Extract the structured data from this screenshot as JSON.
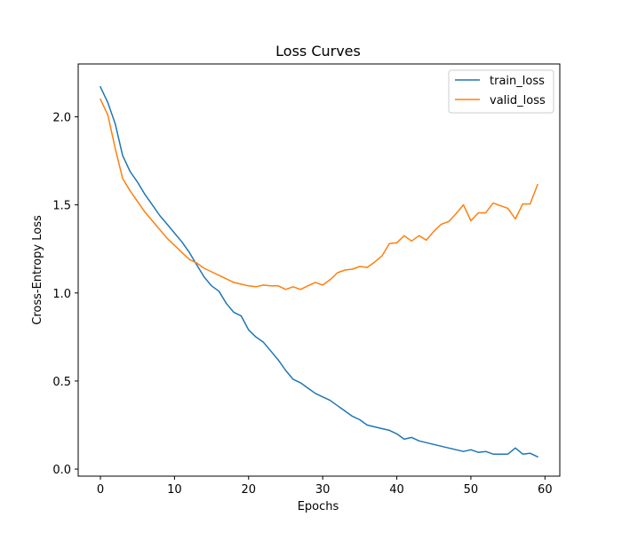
{
  "chart_data": {
    "type": "line",
    "title": "Loss Curves",
    "xlabel": "Epochs",
    "ylabel": "Cross-Entropy Loss",
    "xlim": [
      -3,
      62
    ],
    "ylim": [
      -0.04,
      2.3
    ],
    "xticks": [
      0,
      10,
      20,
      30,
      40,
      50,
      60
    ],
    "xtick_labels": [
      "0",
      "10",
      "20",
      "30",
      "40",
      "50",
      "60"
    ],
    "yticks": [
      0.0,
      0.5,
      1.0,
      1.5,
      2.0
    ],
    "ytick_labels": [
      "0.0",
      "0.5",
      "1.0",
      "1.5",
      "2.0"
    ],
    "grid": false,
    "legend_position": "top-right",
    "colors": {
      "train_loss": "#1f77b4",
      "valid_loss": "#ff7f0e"
    },
    "series": [
      {
        "name": "train_loss",
        "x": [
          0,
          1,
          2,
          3,
          4,
          5,
          6,
          7,
          8,
          9,
          10,
          11,
          12,
          13,
          14,
          15,
          16,
          17,
          18,
          19,
          20,
          21,
          22,
          23,
          24,
          25,
          26,
          27,
          28,
          29,
          30,
          31,
          32,
          33,
          34,
          35,
          36,
          37,
          38,
          39,
          40,
          41,
          42,
          43,
          44,
          45,
          46,
          47,
          48,
          49,
          50,
          51,
          52,
          53,
          54,
          55,
          56,
          57,
          58,
          59
        ],
        "values": [
          2.17,
          2.08,
          1.96,
          1.78,
          1.69,
          1.63,
          1.56,
          1.5,
          1.44,
          1.39,
          1.34,
          1.29,
          1.23,
          1.16,
          1.09,
          1.04,
          1.01,
          0.94,
          0.89,
          0.87,
          0.79,
          0.75,
          0.72,
          0.67,
          0.62,
          0.56,
          0.51,
          0.49,
          0.46,
          0.43,
          0.41,
          0.39,
          0.36,
          0.33,
          0.3,
          0.28,
          0.25,
          0.24,
          0.23,
          0.22,
          0.2,
          0.17,
          0.18,
          0.16,
          0.15,
          0.14,
          0.13,
          0.12,
          0.11,
          0.1,
          0.11,
          0.095,
          0.1,
          0.085,
          0.085,
          0.085,
          0.12,
          0.085,
          0.09,
          0.07
        ]
      },
      {
        "name": "valid_loss",
        "x": [
          0,
          1,
          2,
          3,
          4,
          5,
          6,
          7,
          8,
          9,
          10,
          11,
          12,
          13,
          14,
          15,
          16,
          17,
          18,
          19,
          20,
          21,
          22,
          23,
          24,
          25,
          26,
          27,
          28,
          29,
          30,
          31,
          32,
          33,
          34,
          35,
          36,
          37,
          38,
          39,
          40,
          41,
          42,
          43,
          44,
          45,
          46,
          47,
          48,
          49,
          50,
          51,
          52,
          53,
          54,
          55,
          56,
          57,
          58,
          59
        ],
        "values": [
          2.1,
          2.01,
          1.82,
          1.65,
          1.58,
          1.52,
          1.46,
          1.41,
          1.36,
          1.31,
          1.27,
          1.23,
          1.19,
          1.17,
          1.14,
          1.12,
          1.1,
          1.08,
          1.06,
          1.05,
          1.04,
          1.035,
          1.045,
          1.04,
          1.04,
          1.02,
          1.035,
          1.02,
          1.04,
          1.06,
          1.045,
          1.075,
          1.115,
          1.13,
          1.135,
          1.15,
          1.145,
          1.175,
          1.21,
          1.28,
          1.285,
          1.325,
          1.295,
          1.325,
          1.3,
          1.35,
          1.39,
          1.405,
          1.45,
          1.5,
          1.41,
          1.455,
          1.455,
          1.51,
          1.495,
          1.48,
          1.42,
          1.505,
          1.505,
          1.615
        ]
      }
    ]
  }
}
